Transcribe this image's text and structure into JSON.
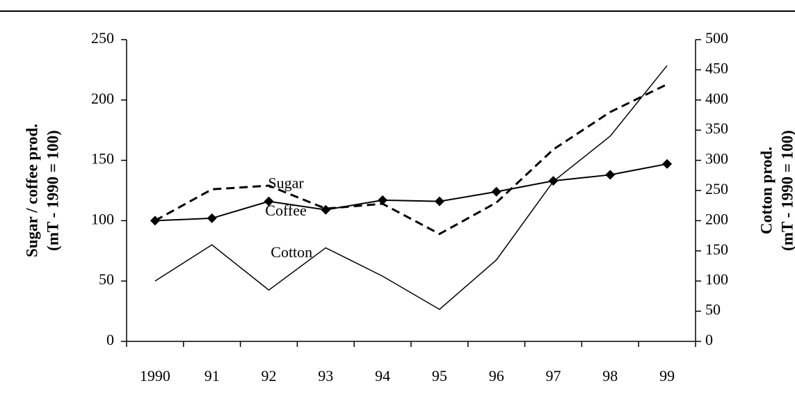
{
  "chart_data": {
    "type": "line",
    "y_label": [
      "Sugar / coffee prod.",
      "(mT - 1990 = 100)"
    ],
    "y2_label": [
      "Cotton prod.",
      "(mT - 1990 = 100)"
    ],
    "categories": [
      "1990",
      "91",
      "92",
      "93",
      "94",
      "95",
      "96",
      "97",
      "98",
      "99"
    ],
    "series": [
      {
        "name": "Sugar",
        "color": "#000000",
        "style": "solid",
        "width": 2,
        "marker": "diamond",
        "values": [
          100,
          102,
          116,
          109,
          117,
          116,
          124,
          133,
          138,
          147
        ]
      },
      {
        "name": "Coffee",
        "color": "#000000",
        "style": "dashed",
        "width": 3,
        "marker": "none",
        "values": [
          100,
          126,
          129,
          110,
          114,
          89,
          115,
          159,
          190,
          213
        ]
      },
      {
        "name": "Cotton",
        "color": "#000000",
        "style": "solid",
        "width": 1.5,
        "marker": "none",
        "axis": "y2",
        "values": [
          100,
          160,
          85,
          155,
          108,
          53,
          135,
          265,
          340,
          457
        ]
      }
    ],
    "ylim": [
      0,
      250
    ],
    "yticks": [
      0,
      50,
      100,
      150,
      200,
      250
    ],
    "y2lim": [
      0,
      500
    ],
    "y2ticks": [
      0,
      50,
      100,
      150,
      200,
      250,
      300,
      350,
      400,
      450,
      500
    ],
    "grid": false
  }
}
